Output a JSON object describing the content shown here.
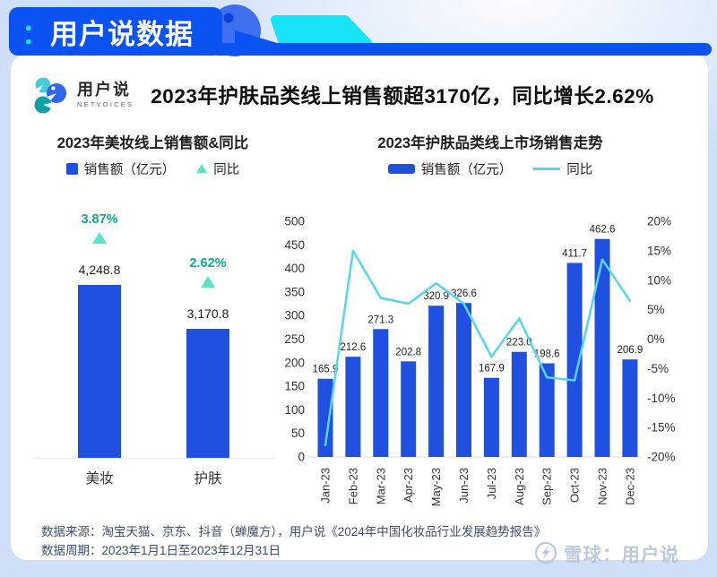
{
  "header": {
    "colon": "：",
    "brand": "用户说数据"
  },
  "logo": {
    "name": "用户说",
    "subtitle": "NETVOICES"
  },
  "page_title": "2023年护肤品类线上销售额超3170亿，同比增长2.62%",
  "footer": {
    "source": "数据来源：淘宝天猫、京东、抖音（蝉魔方），用户说《2024年中国化妆品行业发展趋势报告》",
    "period": "数据周期：2023年1月1日至2023年12月31日"
  },
  "watermark": {
    "label": "雪球：用户说"
  },
  "colors": {
    "accent_blue": "#0A52F2",
    "bar_blue": "#2050E0",
    "line_cyan": "#55D6EC",
    "cyan_decor": "#17E3F6",
    "teal_green": "#0FA98C",
    "triangle_mint": "#5FE3C6",
    "bg_light_blue": "#CEDFF7"
  },
  "chart_data": [
    {
      "type": "bar",
      "title": "2023年美妆线上销售额&同比",
      "legend": [
        {
          "label": "销售额（亿元）",
          "marker": "square",
          "color": "#2050E0"
        },
        {
          "label": "同比",
          "marker": "triangle",
          "color": "#5FE3C6"
        }
      ],
      "categories": [
        "美妆",
        "护肤"
      ],
      "values": [
        4248.8,
        3170.8
      ],
      "value_labels": [
        "4,248.8",
        "3,170.8"
      ],
      "yoy_labels": [
        "3.87%",
        "2.62%"
      ],
      "ylim": [
        0,
        4500
      ],
      "grid": "baseline-only",
      "legend_position": "top"
    },
    {
      "type": "bar+line",
      "title": "2023年护肤品类线上市场销售走势",
      "legend": [
        {
          "label": "销售额（亿元）",
          "marker": "bar",
          "color": "#2050E0"
        },
        {
          "label": "同比",
          "marker": "line",
          "color": "#55D6EC"
        }
      ],
      "categories": [
        "Jan-23",
        "Feb-23",
        "Mar-23",
        "Apr-23",
        "May-23",
        "Jun-23",
        "Jul-23",
        "Aug-23",
        "Sep-23",
        "Oct-23",
        "Nov-23",
        "Dec-23"
      ],
      "series": [
        {
          "name": "销售额（亿元）",
          "type": "bar",
          "axis": "left",
          "values": [
            165.9,
            212.6,
            271.3,
            202.8,
            320.9,
            326.6,
            167.9,
            223.0,
            198.6,
            411.7,
            462.6,
            206.9
          ],
          "labels": [
            "165.9",
            "212.6",
            "271.3",
            "202.8",
            "320.9",
            "326.6",
            "167.9",
            "223.0",
            "198.6",
            "411.7",
            "462.6",
            "206.9"
          ]
        },
        {
          "name": "同比",
          "type": "line",
          "axis": "right",
          "values_pct_estimated": [
            -18,
            15,
            7,
            6,
            9.5,
            6,
            -3,
            3.5,
            -6.5,
            -7,
            13.5,
            6.5
          ]
        }
      ],
      "left_axis": {
        "min": 0,
        "max": 500,
        "step": 50
      },
      "right_axis": {
        "min": -20,
        "max": 20,
        "step": 5,
        "unit": "%"
      },
      "grid": "baseline-only",
      "legend_position": "top"
    }
  ]
}
